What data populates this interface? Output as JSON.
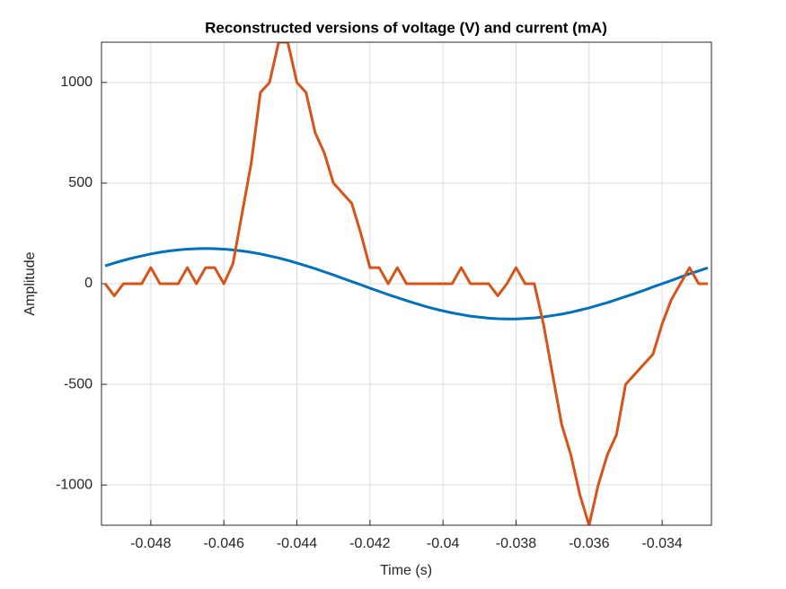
{
  "chart_data": {
    "type": "line",
    "title": "Reconstructed versions of voltage (V) and current (mA)",
    "xlabel": "Time (s)",
    "ylabel": "Amplitude",
    "x": [
      -0.04925,
      -0.049,
      -0.04875,
      -0.0485,
      -0.04825,
      -0.048,
      -0.04775,
      -0.0475,
      -0.04725,
      -0.047,
      -0.04675,
      -0.0465,
      -0.04625,
      -0.046,
      -0.04575,
      -0.0455,
      -0.04525,
      -0.045,
      -0.04475,
      -0.0445,
      -0.04425,
      -0.044,
      -0.04375,
      -0.0435,
      -0.04325,
      -0.043,
      -0.04275,
      -0.0425,
      -0.04225,
      -0.042,
      -0.04175,
      -0.0415,
      -0.04125,
      -0.041,
      -0.04075,
      -0.0405,
      -0.04025,
      -0.04,
      -0.03975,
      -0.0395,
      -0.03925,
      -0.039,
      -0.03875,
      -0.0385,
      -0.03825,
      -0.038,
      -0.03775,
      -0.0375,
      -0.03725,
      -0.037,
      -0.03675,
      -0.0365,
      -0.03625,
      -0.036,
      -0.03575,
      -0.0355,
      -0.03525,
      -0.035,
      -0.03475,
      -0.0345,
      -0.03425,
      -0.034,
      -0.03375,
      -0.0335,
      -0.03325,
      -0.033,
      -0.03275
    ],
    "series": [
      {
        "color": "#0072BD",
        "values": [
          89,
          103,
          116,
          128,
          138,
          148,
          156,
          163,
          168,
          172,
          174,
          175,
          174,
          172,
          168,
          163,
          156,
          148,
          138,
          128,
          116,
          103,
          89,
          75,
          59,
          44,
          27,
          11,
          -5,
          -22,
          -38,
          -54,
          -69,
          -84,
          -98,
          -112,
          -124,
          -135,
          -145,
          -153,
          -161,
          -166,
          -171,
          -174,
          -175,
          -175,
          -173,
          -170,
          -165,
          -158,
          -151,
          -142,
          -131,
          -120,
          -107,
          -94,
          -79,
          -64,
          -49,
          -33,
          -16,
          0,
          16,
          33,
          49,
          64,
          79
        ]
      },
      {
        "color": "#D95319",
        "values": [
          0,
          -60,
          0,
          0,
          0,
          80,
          0,
          0,
          0,
          80,
          0,
          80,
          80,
          0,
          100,
          350,
          600,
          950,
          1000,
          1200,
          1200,
          1000,
          950,
          750,
          650,
          500,
          450,
          400,
          250,
          80,
          80,
          0,
          80,
          0,
          0,
          0,
          0,
          0,
          0,
          80,
          0,
          0,
          0,
          -60,
          0,
          80,
          0,
          0,
          -200,
          -450,
          -700,
          -850,
          -1050,
          -1200,
          -1000,
          -850,
          -750,
          -500,
          -450,
          -400,
          -350,
          -200,
          -80,
          0,
          80,
          0,
          0
        ]
      }
    ],
    "xlim": [
      -0.04935,
      -0.03265
    ],
    "ylim": [
      -1200,
      1200
    ],
    "xticks": [
      -0.048,
      -0.046,
      -0.044,
      -0.042,
      -0.04,
      -0.038,
      -0.036,
      -0.034
    ],
    "yticks": [
      -1000,
      -500,
      0,
      500,
      1000
    ],
    "grid": true
  }
}
